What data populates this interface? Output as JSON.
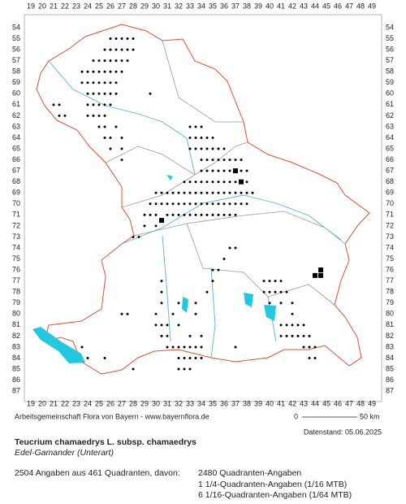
{
  "header": {
    "title": "Teucrium chamaedrys L. subsp. chamaedrys",
    "subtitle": "Edel-Gamander (Unterart)"
  },
  "map": {
    "x_labels": [
      19,
      20,
      21,
      22,
      23,
      24,
      25,
      26,
      27,
      28,
      29,
      30,
      31,
      32,
      33,
      34,
      35,
      36,
      37,
      38,
      39,
      40,
      41,
      42,
      43,
      44,
      45,
      46,
      47,
      48,
      49
    ],
    "y_labels": [
      54,
      55,
      56,
      57,
      58,
      59,
      60,
      61,
      62,
      63,
      64,
      65,
      66,
      67,
      68,
      69,
      70,
      71,
      72,
      73,
      74,
      75,
      76,
      77,
      78,
      79,
      80,
      81,
      82,
      83,
      84,
      85,
      86,
      87
    ],
    "dots": [
      [
        26,
        55
      ],
      [
        26.5,
        55
      ],
      [
        27,
        55
      ],
      [
        27.5,
        55
      ],
      [
        28,
        55
      ],
      [
        25.5,
        56
      ],
      [
        26,
        56
      ],
      [
        26.5,
        56
      ],
      [
        27,
        56
      ],
      [
        27.5,
        56
      ],
      [
        28,
        56
      ],
      [
        24.5,
        57
      ],
      [
        25,
        57
      ],
      [
        25.5,
        57
      ],
      [
        26,
        57
      ],
      [
        26.5,
        57
      ],
      [
        27,
        57
      ],
      [
        27.5,
        57
      ],
      [
        23.5,
        58
      ],
      [
        24,
        58
      ],
      [
        24.5,
        58
      ],
      [
        25,
        58
      ],
      [
        25.5,
        58
      ],
      [
        26,
        58
      ],
      [
        26.5,
        58
      ],
      [
        27,
        58
      ],
      [
        23.5,
        59
      ],
      [
        24,
        59
      ],
      [
        24.5,
        59
      ],
      [
        25,
        59
      ],
      [
        25.5,
        59
      ],
      [
        26,
        59
      ],
      [
        26.5,
        59
      ],
      [
        24,
        60
      ],
      [
        24.5,
        60
      ],
      [
        25,
        60
      ],
      [
        25.5,
        60
      ],
      [
        26,
        60
      ],
      [
        26.5,
        60
      ],
      [
        29.5,
        60
      ],
      [
        21,
        61
      ],
      [
        21.5,
        61
      ],
      [
        24,
        61
      ],
      [
        24.5,
        61
      ],
      [
        25,
        61
      ],
      [
        25.5,
        61
      ],
      [
        26,
        61
      ],
      [
        21.5,
        62
      ],
      [
        22,
        62
      ],
      [
        24,
        62
      ],
      [
        24.5,
        62
      ],
      [
        25,
        62
      ],
      [
        25.5,
        62
      ],
      [
        25,
        63
      ],
      [
        25.5,
        63
      ],
      [
        26.5,
        63
      ],
      [
        33,
        63
      ],
      [
        33.5,
        63
      ],
      [
        34,
        63
      ],
      [
        25.5,
        64
      ],
      [
        26,
        64
      ],
      [
        27,
        64
      ],
      [
        33,
        64
      ],
      [
        33.5,
        64
      ],
      [
        34,
        64
      ],
      [
        34.5,
        64
      ],
      [
        35,
        64
      ],
      [
        26,
        65
      ],
      [
        27,
        65
      ],
      [
        33,
        65
      ],
      [
        33.5,
        65
      ],
      [
        34,
        65
      ],
      [
        34.5,
        65
      ],
      [
        35,
        65
      ],
      [
        35.5,
        65
      ],
      [
        36,
        65
      ],
      [
        27,
        66
      ],
      [
        34,
        66
      ],
      [
        34.5,
        66
      ],
      [
        35,
        66
      ],
      [
        35.5,
        66
      ],
      [
        36,
        66
      ],
      [
        36.5,
        66
      ],
      [
        37,
        66
      ],
      [
        37.5,
        66
      ],
      [
        34,
        67
      ],
      [
        34.5,
        67
      ],
      [
        35,
        67
      ],
      [
        35.5,
        67
      ],
      [
        36,
        67
      ],
      [
        36.5,
        67
      ],
      [
        37.5,
        67
      ],
      [
        38,
        67
      ],
      [
        32.5,
        68
      ],
      [
        33,
        68
      ],
      [
        33.5,
        68
      ],
      [
        34,
        68
      ],
      [
        34.5,
        68
      ],
      [
        35,
        68
      ],
      [
        35.5,
        68
      ],
      [
        36,
        68
      ],
      [
        36.5,
        68
      ],
      [
        37,
        68
      ],
      [
        38,
        68
      ],
      [
        30,
        69
      ],
      [
        30.5,
        69
      ],
      [
        31,
        69
      ],
      [
        31.5,
        69
      ],
      [
        32,
        69
      ],
      [
        32.5,
        69
      ],
      [
        33,
        69
      ],
      [
        33.5,
        69
      ],
      [
        34,
        69
      ],
      [
        34.5,
        69
      ],
      [
        35,
        69
      ],
      [
        35.5,
        69
      ],
      [
        36,
        69
      ],
      [
        36.5,
        69
      ],
      [
        37,
        69
      ],
      [
        37.5,
        69
      ],
      [
        38,
        69
      ],
      [
        38.5,
        69
      ],
      [
        29.5,
        70
      ],
      [
        30,
        70
      ],
      [
        30.5,
        70
      ],
      [
        31,
        70
      ],
      [
        31.5,
        70
      ],
      [
        32,
        70
      ],
      [
        32.5,
        70
      ],
      [
        33,
        70
      ],
      [
        33.5,
        70
      ],
      [
        34,
        70
      ],
      [
        34.5,
        70
      ],
      [
        35,
        70
      ],
      [
        35.5,
        70
      ],
      [
        36,
        70
      ],
      [
        36.5,
        70
      ],
      [
        37,
        70
      ],
      [
        37.5,
        70
      ],
      [
        38,
        70
      ],
      [
        29,
        71
      ],
      [
        29.5,
        71
      ],
      [
        30,
        71
      ],
      [
        31,
        71
      ],
      [
        31.5,
        71
      ],
      [
        32,
        71
      ],
      [
        32.5,
        71
      ],
      [
        33,
        71
      ],
      [
        33.5,
        71
      ],
      [
        34,
        71
      ],
      [
        34.5,
        71
      ],
      [
        35,
        71
      ],
      [
        35.5,
        71
      ],
      [
        36,
        71
      ],
      [
        36.5,
        71
      ],
      [
        37,
        71
      ],
      [
        29,
        72
      ],
      [
        30,
        72
      ],
      [
        28,
        73
      ],
      [
        28.5,
        73
      ],
      [
        36.5,
        74
      ],
      [
        37,
        74
      ],
      [
        36,
        75
      ],
      [
        35,
        76
      ],
      [
        35.5,
        76
      ],
      [
        30.5,
        77
      ],
      [
        35,
        77
      ],
      [
        39.5,
        77
      ],
      [
        40,
        77
      ],
      [
        40.5,
        77
      ],
      [
        41,
        77
      ],
      [
        30.5,
        78
      ],
      [
        34.5,
        78
      ],
      [
        39.5,
        78
      ],
      [
        40,
        78
      ],
      [
        40.5,
        78
      ],
      [
        41,
        78
      ],
      [
        41.5,
        78
      ],
      [
        30.5,
        79
      ],
      [
        32,
        79
      ],
      [
        33.5,
        79
      ],
      [
        40,
        79
      ],
      [
        41,
        79
      ],
      [
        42,
        79
      ],
      [
        27,
        80
      ],
      [
        27.5,
        80
      ],
      [
        30,
        80
      ],
      [
        31.5,
        80
      ],
      [
        33.5,
        80
      ],
      [
        42,
        80
      ],
      [
        30,
        81
      ],
      [
        30.5,
        81
      ],
      [
        31,
        81
      ],
      [
        32,
        81
      ],
      [
        41,
        81
      ],
      [
        41.5,
        81
      ],
      [
        42,
        81
      ],
      [
        42.5,
        81
      ],
      [
        43,
        81
      ],
      [
        30.5,
        82
      ],
      [
        31,
        82
      ],
      [
        33,
        82
      ],
      [
        34,
        82
      ],
      [
        41,
        82
      ],
      [
        41.5,
        82
      ],
      [
        42,
        82
      ],
      [
        42.5,
        82
      ],
      [
        43,
        82
      ],
      [
        43.5,
        82
      ],
      [
        23.5,
        83
      ],
      [
        31,
        83
      ],
      [
        31.5,
        83
      ],
      [
        32,
        83
      ],
      [
        32.5,
        83
      ],
      [
        33,
        83
      ],
      [
        33.5,
        83
      ],
      [
        34,
        83
      ],
      [
        37,
        83
      ],
      [
        43,
        83
      ],
      [
        43.5,
        83
      ],
      [
        44,
        83
      ],
      [
        24,
        84
      ],
      [
        25.5,
        84
      ],
      [
        32,
        84
      ],
      [
        32.5,
        84
      ],
      [
        33,
        84
      ],
      [
        33.5,
        84
      ],
      [
        34,
        84
      ],
      [
        43.5,
        84
      ],
      [
        44,
        84
      ],
      [
        28,
        85
      ],
      [
        32,
        85
      ],
      [
        32.5,
        85
      ],
      [
        33,
        85
      ]
    ],
    "squares": [
      [
        37,
        67
      ],
      [
        37.5,
        68
      ],
      [
        30.5,
        71.5
      ],
      [
        44.5,
        76
      ],
      [
        44,
        76.5
      ],
      [
        44.5,
        76.5
      ]
    ]
  },
  "scale": {
    "start": "0",
    "end": "50 km"
  },
  "footer": {
    "credit": "Arbeitsgemeinschaft Flora von Bayern - www.bayernflora.de",
    "date": "Datenstand: 05.06.2025",
    "summary": "2504 Angaben aus 461 Quadranten, davon:",
    "detail": [
      "2480 Quadranten-Angaben",
      "1 1/4-Quadranten-Angaben (1/16 MTB)",
      "6 1/16-Quadranten-Angaben (1/64 MTB)"
    ]
  }
}
